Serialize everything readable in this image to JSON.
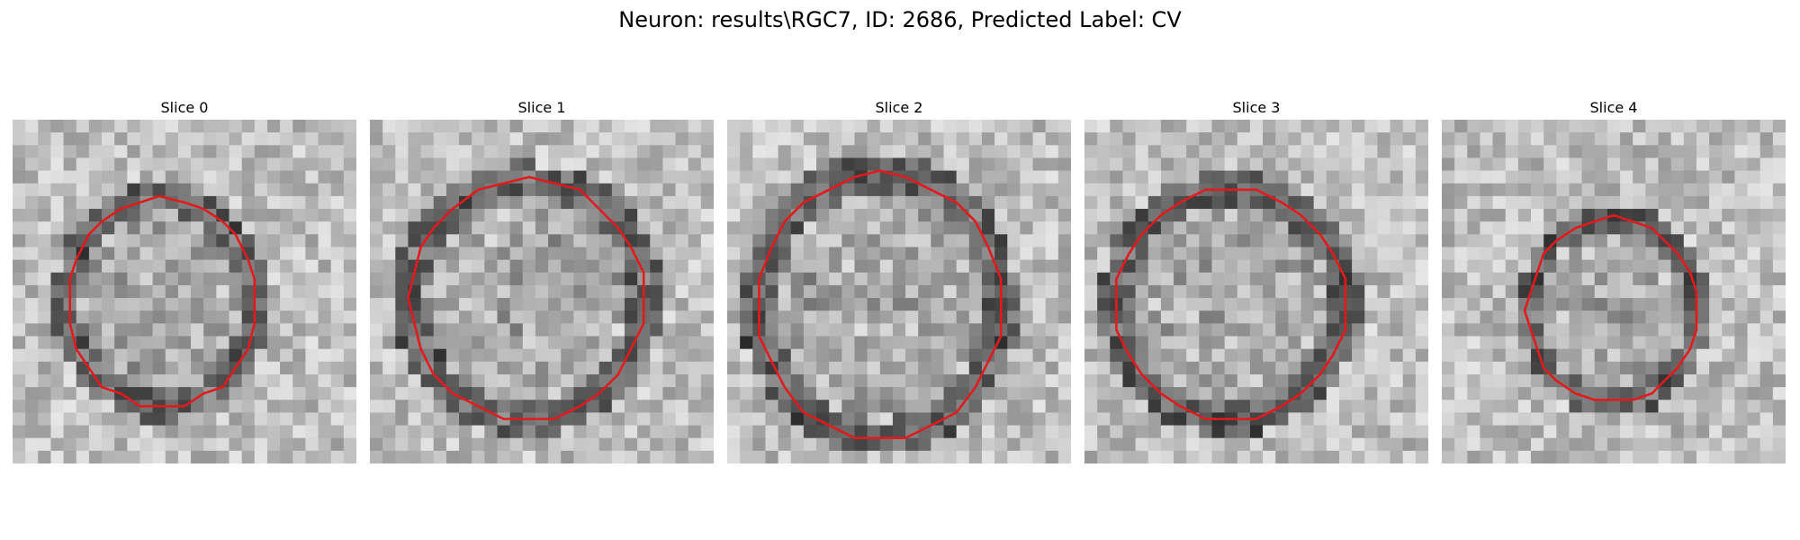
{
  "figure": {
    "title": "Neuron: results\\RGC7, ID: 2686, Predicted Label: CV",
    "contour_color": "#e31a1c",
    "panels": [
      {
        "title": "Slice 0",
        "seed": 11
      },
      {
        "title": "Slice 1",
        "seed": 23
      },
      {
        "title": "Slice 2",
        "seed": 37
      },
      {
        "title": "Slice 3",
        "seed": 41
      },
      {
        "title": "Slice 4",
        "seed": 59
      }
    ]
  }
}
